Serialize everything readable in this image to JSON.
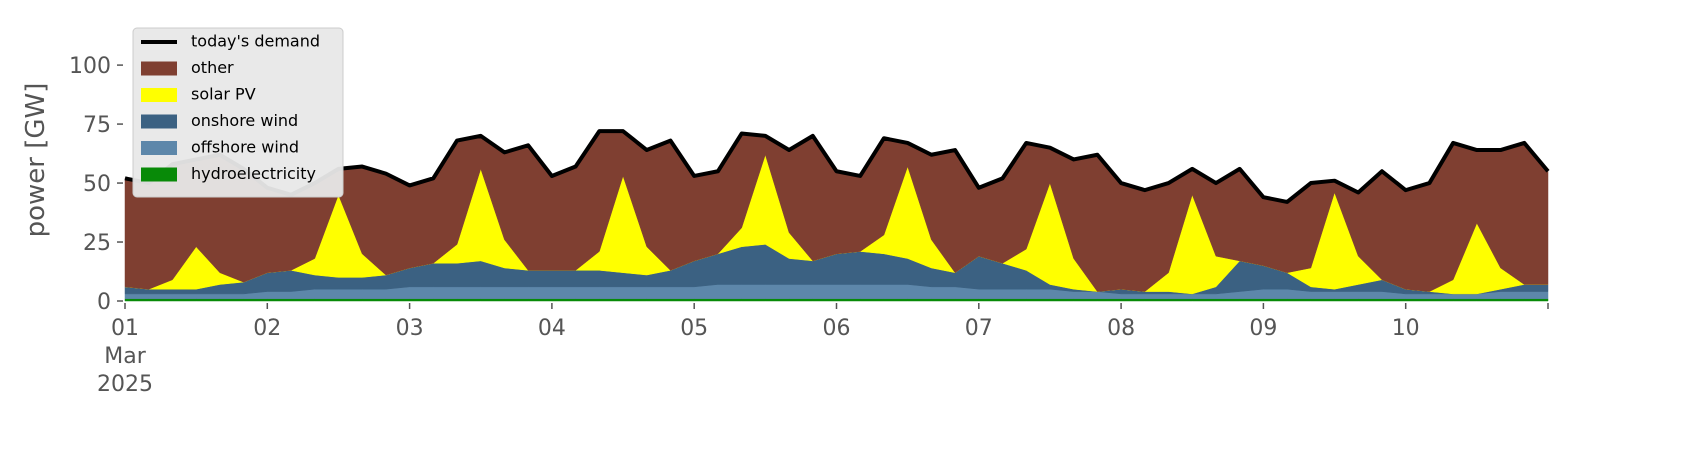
{
  "chart_data": {
    "type": "stacked_area",
    "ylabel": "power [GW]",
    "x": [
      0,
      4,
      8,
      12,
      16,
      20,
      24,
      28,
      32,
      36,
      40,
      44,
      48,
      52,
      56,
      60,
      64,
      68,
      72,
      76,
      80,
      84,
      88,
      92,
      96,
      100,
      104,
      108,
      112,
      116,
      120,
      124,
      128,
      132,
      136,
      140,
      144,
      148,
      152,
      156,
      160,
      164,
      168,
      172,
      176,
      180,
      184,
      188,
      192,
      196,
      200,
      204,
      208,
      212,
      216,
      220,
      224,
      228,
      232,
      236,
      240
    ],
    "xlim": [
      0,
      240
    ],
    "xticks": [
      {
        "value": 0,
        "label": "01\nMar\n2025"
      },
      {
        "value": 24,
        "label": "02"
      },
      {
        "value": 48,
        "label": "03"
      },
      {
        "value": 72,
        "label": "04"
      },
      {
        "value": 96,
        "label": "05"
      },
      {
        "value": 120,
        "label": "06"
      },
      {
        "value": 144,
        "label": "07"
      },
      {
        "value": 168,
        "label": "08"
      },
      {
        "value": 192,
        "label": "09"
      },
      {
        "value": 216,
        "label": "10"
      },
      {
        "value": 240,
        "label": ""
      }
    ],
    "ylim": [
      0,
      117
    ],
    "yticks": [
      0,
      25,
      50,
      75,
      100
    ],
    "legend": "upper left",
    "demand": {
      "name": "today's demand",
      "color": "#000000",
      "values": [
        52,
        50,
        58,
        60,
        62,
        56,
        48,
        45,
        50,
        56,
        57,
        54,
        49,
        52,
        68,
        70,
        63,
        66,
        53,
        57,
        72,
        72,
        64,
        68,
        53,
        55,
        71,
        70,
        64,
        70,
        55,
        53,
        69,
        67,
        62,
        64,
        48,
        52,
        67,
        65,
        60,
        62,
        50,
        47,
        50,
        56,
        50,
        56,
        44,
        42,
        50,
        51,
        46,
        55,
        47,
        50,
        67,
        64,
        64,
        67,
        55
      ]
    },
    "series": [
      {
        "name": "other",
        "color": "#7f3f31",
        "values": [
          46,
          45,
          49,
          37,
          50,
          48,
          36,
          32,
          32,
          11,
          37,
          43,
          35,
          36,
          44,
          14,
          37,
          53,
          40,
          44,
          51,
          19,
          41,
          55,
          36,
          35,
          40,
          8,
          35,
          53,
          35,
          32,
          41,
          10,
          36,
          52,
          29,
          36,
          45,
          15,
          42,
          58,
          45,
          43,
          38,
          11,
          31,
          39,
          29,
          30,
          36,
          5,
          27,
          46,
          42,
          46,
          58,
          31,
          50,
          60,
          48
        ]
      },
      {
        "name": "solar PV",
        "color": "#ffff00",
        "values": [
          0,
          0,
          4,
          18,
          5,
          0,
          0,
          0,
          7,
          35,
          10,
          0,
          0,
          0,
          8,
          39,
          12,
          0,
          0,
          0,
          8,
          41,
          12,
          0,
          0,
          0,
          8,
          38,
          11,
          0,
          0,
          0,
          8,
          39,
          12,
          0,
          0,
          0,
          9,
          43,
          13,
          0,
          0,
          0,
          8,
          42,
          13,
          0,
          0,
          0,
          8,
          41,
          12,
          0,
          0,
          0,
          6,
          30,
          9,
          0,
          0
        ]
      },
      {
        "name": "onshore wind",
        "color": "#3b6182",
        "values": [
          3,
          2,
          2,
          2,
          4,
          5,
          8,
          9,
          6,
          5,
          5,
          6,
          8,
          10,
          10,
          11,
          8,
          7,
          7,
          7,
          7,
          6,
          5,
          7,
          11,
          13,
          16,
          17,
          11,
          10,
          13,
          14,
          13,
          11,
          8,
          6,
          14,
          11,
          8,
          2,
          1,
          0,
          2,
          1,
          1,
          0,
          3,
          13,
          10,
          7,
          2,
          1,
          3,
          5,
          2,
          1,
          0,
          0,
          1,
          3,
          3
        ]
      },
      {
        "name": "offshore wind",
        "color": "#5d87aa",
        "values": [
          2,
          2,
          2,
          2,
          2,
          2,
          3,
          3,
          4,
          4,
          4,
          4,
          5,
          5,
          5,
          5,
          5,
          5,
          5,
          5,
          5,
          5,
          5,
          5,
          5,
          6,
          6,
          6,
          6,
          6,
          6,
          6,
          6,
          6,
          5,
          5,
          4,
          4,
          4,
          4,
          3,
          3,
          2,
          2,
          2,
          2,
          2,
          3,
          4,
          4,
          3,
          3,
          3,
          3,
          2,
          2,
          2,
          2,
          3,
          3,
          3
        ]
      },
      {
        "name": "hydroelectricity",
        "color": "#088a08",
        "values": [
          1,
          1,
          1,
          1,
          1,
          1,
          1,
          1,
          1,
          1,
          1,
          1,
          1,
          1,
          1,
          1,
          1,
          1,
          1,
          1,
          1,
          1,
          1,
          1,
          1,
          1,
          1,
          1,
          1,
          1,
          1,
          1,
          1,
          1,
          1,
          1,
          1,
          1,
          1,
          1,
          1,
          1,
          1,
          1,
          1,
          1,
          1,
          1,
          1,
          1,
          1,
          1,
          1,
          1,
          1,
          1,
          1,
          1,
          1,
          1,
          1
        ]
      }
    ]
  }
}
